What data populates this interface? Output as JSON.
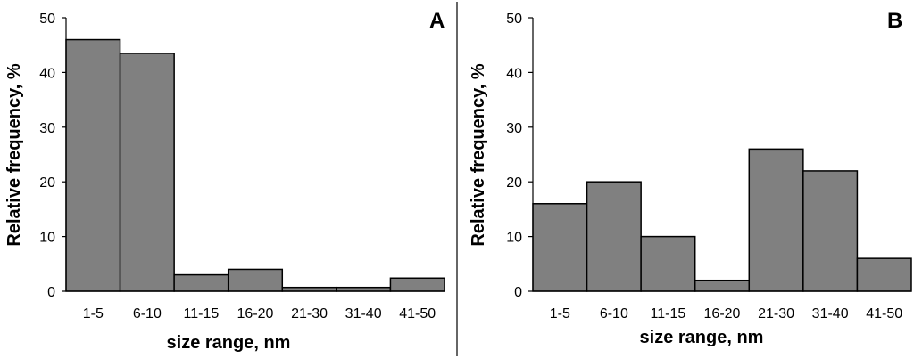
{
  "chart_data": [
    {
      "type": "bar",
      "panel_label": "A",
      "categories": [
        "1-5",
        "6-10",
        "11-15",
        "16-20",
        "21-30",
        "31-40",
        "41-50"
      ],
      "series": [
        {
          "values": [
            46,
            43.5,
            3,
            4,
            0.7,
            0.7,
            2.4
          ]
        }
      ],
      "xlabel": "size range, nm",
      "ylabel": "Relative frequency, %",
      "ylim": [
        0,
        50
      ],
      "yticks": [
        0,
        10,
        20,
        30,
        40,
        50
      ],
      "grid": false,
      "bar_color": "#808080",
      "edge_color": "#000000"
    },
    {
      "type": "bar",
      "panel_label": "B",
      "categories": [
        "1-5",
        "6-10",
        "11-15",
        "16-20",
        "21-30",
        "31-40",
        "41-50"
      ],
      "series": [
        {
          "values": [
            16,
            20,
            10,
            2,
            26,
            22,
            6
          ]
        }
      ],
      "xlabel": "size range, nm",
      "ylabel": "Relative frequency, %",
      "ylim": [
        0,
        50
      ],
      "yticks": [
        0,
        10,
        20,
        30,
        40,
        50
      ],
      "grid": false,
      "bar_color": "#808080",
      "edge_color": "#000000"
    }
  ]
}
